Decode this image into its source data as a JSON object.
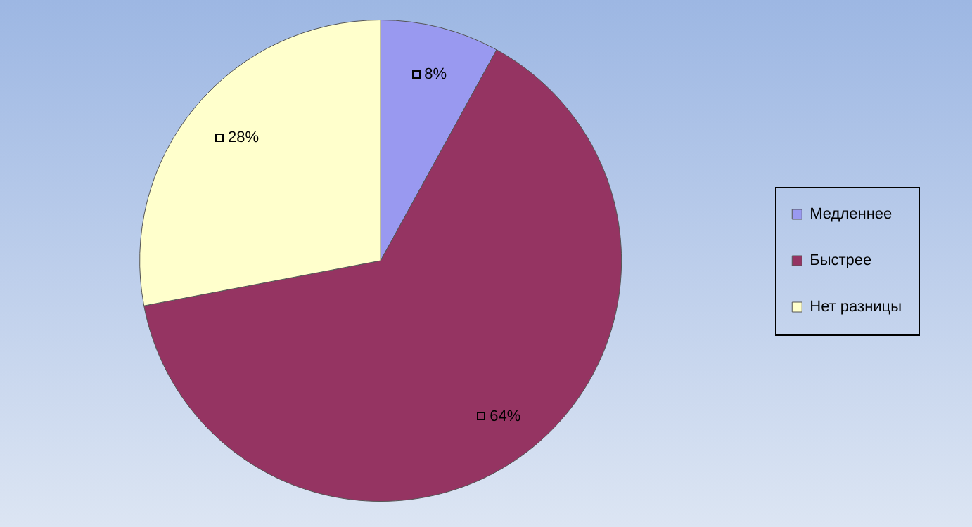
{
  "chart_data": {
    "type": "pie",
    "categories": [
      "Медленнее",
      "Быстрее",
      "Нет разницы"
    ],
    "values": [
      8,
      64,
      28
    ],
    "colors": [
      "#9999f0",
      "#953462",
      "#ffffcc"
    ],
    "value_labels": [
      "8%",
      "64%",
      "28%"
    ],
    "legend": "right"
  }
}
